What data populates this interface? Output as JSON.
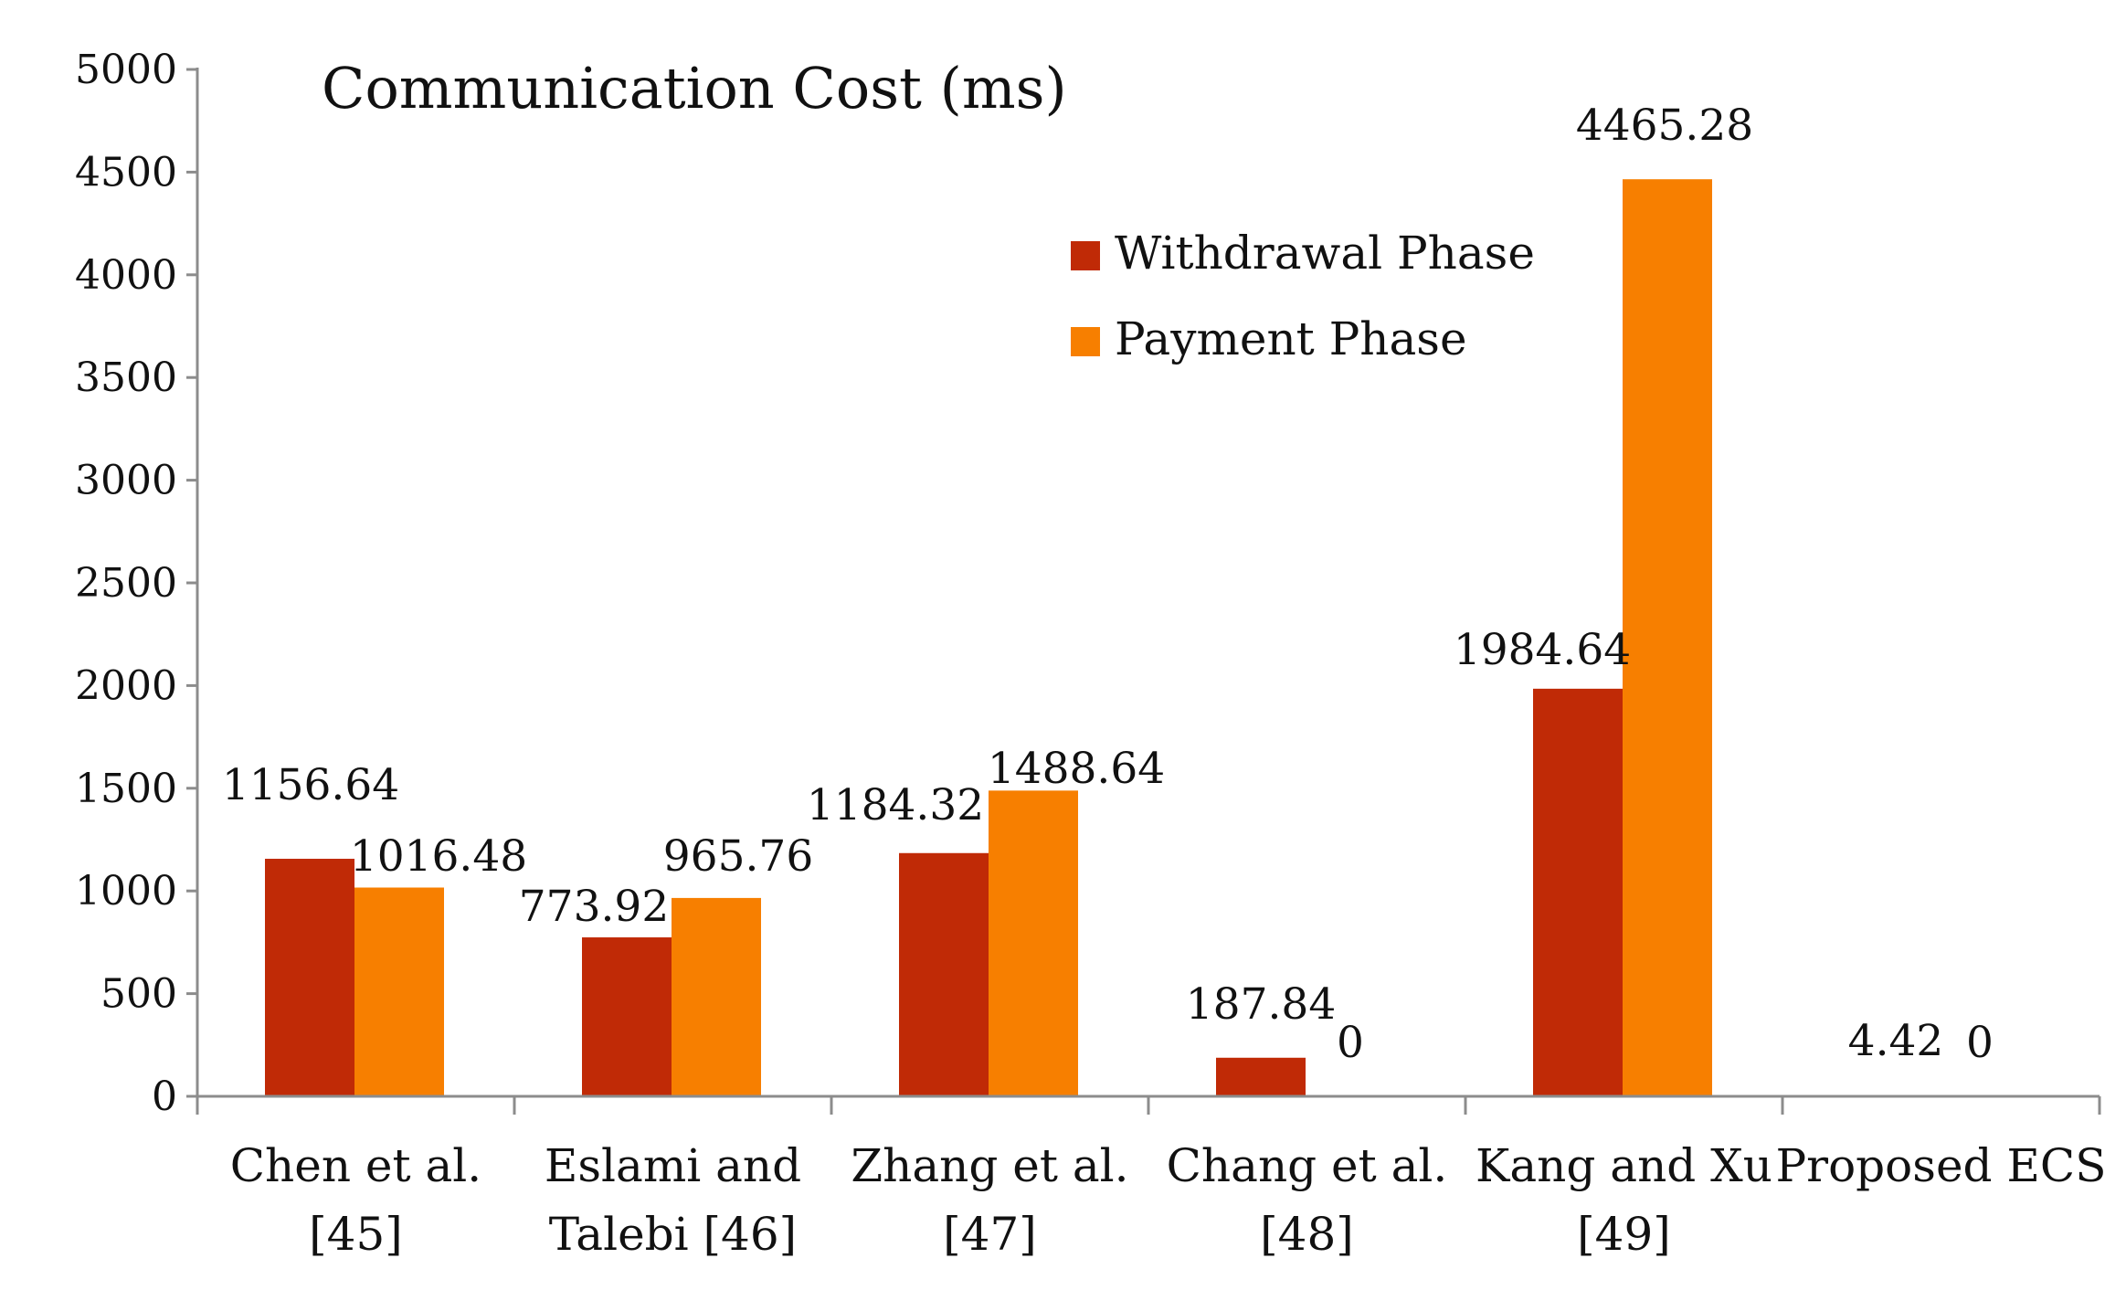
{
  "colors": {
    "withdrawal": "#c02a06",
    "payment": "#f77f00",
    "axis": "#8c8c8c",
    "text": "#111111"
  },
  "chart_data": {
    "type": "bar",
    "title": "Communication Cost (ms)",
    "xlabel": "",
    "ylabel": "",
    "ylim": [
      0,
      5000
    ],
    "yticks": [
      0,
      500,
      1000,
      1500,
      2000,
      2500,
      3000,
      3500,
      4000,
      4500,
      5000
    ],
    "grid": false,
    "legend_position": "top-center",
    "categories": [
      [
        "Chen et al.",
        "[45]"
      ],
      [
        "Eslami and",
        "Talebi [46]"
      ],
      [
        "Zhang et al.",
        "[47]"
      ],
      [
        "Chang et al.",
        "[48]"
      ],
      [
        "Kang and Xu",
        "[49]"
      ],
      [
        "Proposed ECS"
      ]
    ],
    "series": [
      {
        "name": "Withdrawal Phase",
        "color_key": "withdrawal",
        "values": [
          1156.64,
          773.92,
          1184.32,
          187.84,
          1984.64,
          4.42
        ],
        "labels": [
          "1156.64",
          "773.92",
          "1184.32",
          "187.84",
          "1984.64",
          "4.42"
        ]
      },
      {
        "name": "Payment Phase",
        "color_key": "payment",
        "values": [
          1016.48,
          965.76,
          1488.64,
          0,
          4465.28,
          0
        ],
        "labels": [
          "1016.48",
          "965.76",
          "1488.64",
          "0",
          "4465.28",
          "0"
        ]
      }
    ]
  }
}
